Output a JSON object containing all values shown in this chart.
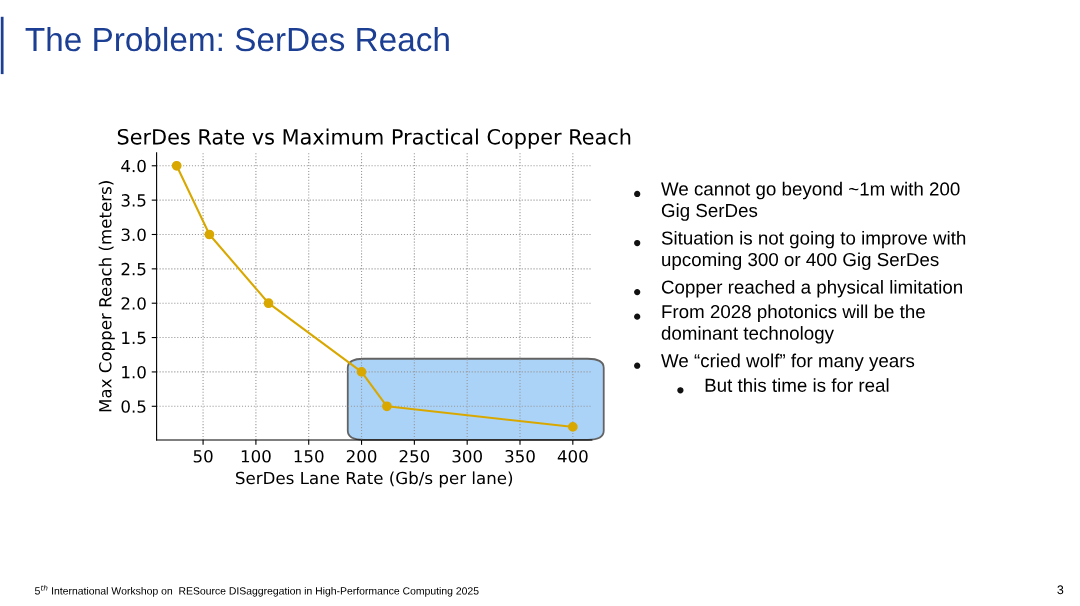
{
  "chart_data": {
    "type": "line",
    "title": "The Problem: SerDes Reach",
    "subtitle": "SerDes Rate vs Maximum Practical Copper Reach",
    "xlabel": "SerDes Lane Rate (Gb/s per lane)",
    "ylabel": "Max Copper Reach (meters)",
    "x": [
      25,
      56,
      112,
      200,
      224,
      400
    ],
    "series": [
      {
        "color": "#d9a800",
        "values": [
          4.0,
          3.0,
          2.0,
          1.0,
          0.5,
          0.2
        ]
      }
    ],
    "xlim": [
      6,
      418
    ],
    "xticks": [
      50,
      100,
      150,
      200,
      250,
      300,
      350,
      400
    ],
    "ylim": [
      0.01,
      4.19
    ],
    "yticks": [
      0.5,
      {
        "value": 1,
        "label": "1.0"
      },
      1.5,
      {
        "value": 2,
        "label": "2.0"
      },
      2.5,
      {
        "value": 3,
        "label": "3.0"
      },
      3.5,
      {
        "value": 4,
        "label": "4.0"
      }
    ],
    "grid": true,
    "marker": "circle",
    "line_style": "solid",
    "annotations": [
      "We cannot go beyond ~1m with 200\nGig SerDes",
      "Situation is not going to improve with\nupcoming 300 or 400 Gig SerDes",
      "Copper reached a physical limitation",
      "From 2028 photonics will be the\ndominant technology",
      "We “cried wolf” for many years",
      "But this time is for real",
      "5$^{th}$ International Workshop on  RESource DISaggregation in High-Performance Computing 2025",
      "3"
    ]
  }
}
